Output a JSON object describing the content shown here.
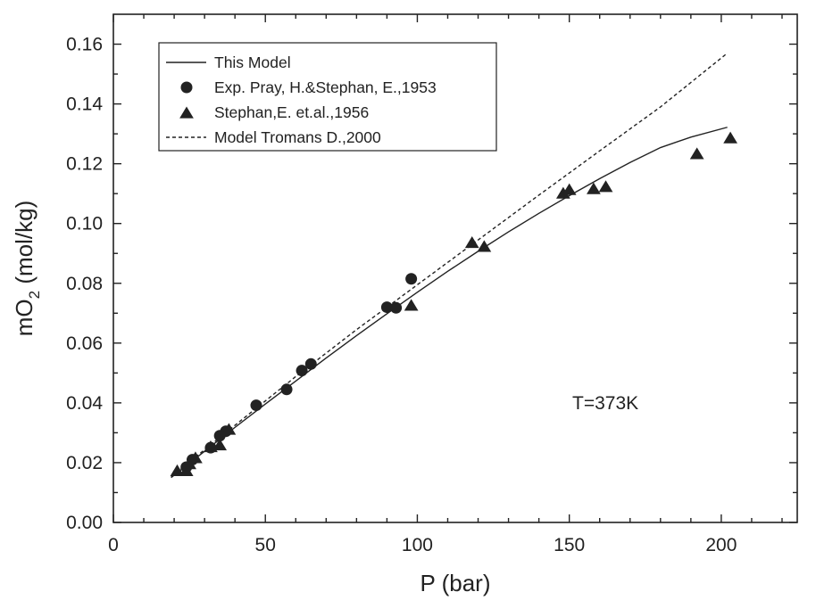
{
  "chart_data": {
    "type": "scatter",
    "xlabel": "P (bar)",
    "ylabel_main": "mO",
    "ylabel_sub": "2",
    "ylabel_unit": " (mol/kg)",
    "xlim": [
      0,
      225
    ],
    "ylim": [
      0,
      0.17
    ],
    "xticks": [
      0,
      50,
      100,
      150,
      200
    ],
    "xtick_labels": [
      "0",
      "50",
      "100",
      "150",
      "200"
    ],
    "yticks": [
      0,
      0.02,
      0.04,
      0.06,
      0.08,
      0.1,
      0.12,
      0.14,
      0.16
    ],
    "ytick_labels": [
      "0.00",
      "0.02",
      "0.04",
      "0.06",
      "0.08",
      "0.10",
      "0.12",
      "0.14",
      "0.16"
    ],
    "grid": false,
    "legend_position": "top-left",
    "annotation": "T=373K",
    "series": [
      {
        "name": "This Model",
        "style": "solid-line",
        "x": [
          19,
          30,
          40,
          50,
          60,
          70,
          80,
          90,
          100,
          110,
          120,
          130,
          140,
          150,
          160,
          170,
          180,
          190,
          202
        ],
        "y": [
          0.015,
          0.0238,
          0.0318,
          0.0396,
          0.0473,
          0.055,
          0.0625,
          0.0698,
          0.077,
          0.084,
          0.0907,
          0.0972,
          0.1034,
          0.1093,
          0.115,
          0.1204,
          0.1254,
          0.1289,
          0.1322
        ]
      },
      {
        "name": "Exp. Pray, H.&Stephan, E.,1953",
        "style": "circle",
        "x": [
          24,
          26,
          32,
          35,
          37,
          47,
          57,
          62,
          65,
          90,
          93,
          98
        ],
        "y": [
          0.0185,
          0.021,
          0.025,
          0.029,
          0.0305,
          0.0392,
          0.0445,
          0.0508,
          0.053,
          0.072,
          0.0718,
          0.0815
        ]
      },
      {
        "name": "Stephan,E. et.al.,1956",
        "style": "triangle",
        "x": [
          21,
          24,
          25,
          27,
          32,
          35,
          38,
          98,
          118,
          122,
          148,
          150,
          158,
          162,
          192,
          203
        ],
        "y": [
          0.0172,
          0.0172,
          0.0195,
          0.0215,
          0.0252,
          0.0258,
          0.031,
          0.0725,
          0.0935,
          0.0922,
          0.11,
          0.1112,
          0.1115,
          0.1122,
          0.1232,
          0.1285
        ]
      },
      {
        "name": "Model Tromans D.,2000",
        "style": "dashed-line",
        "x": [
          19,
          40,
          60,
          80,
          100,
          120,
          140,
          160,
          180,
          202
        ],
        "y": [
          0.0153,
          0.0325,
          0.0488,
          0.0645,
          0.0795,
          0.0945,
          0.1095,
          0.1243,
          0.139,
          0.157
        ]
      }
    ]
  }
}
